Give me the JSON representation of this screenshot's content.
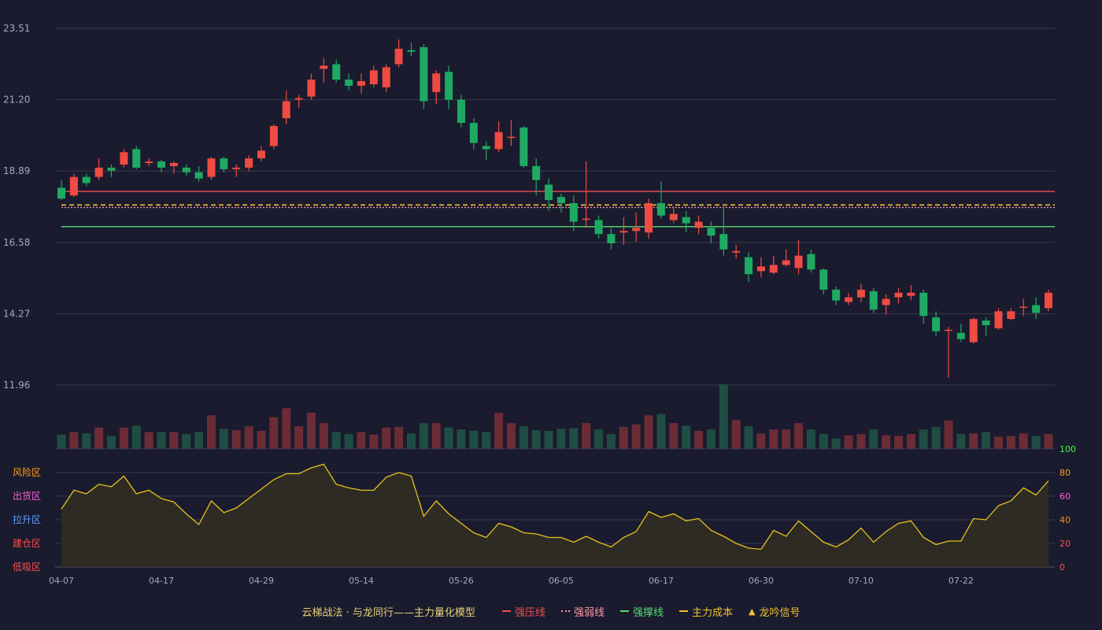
{
  "legend": {
    "title": "云梯战法 · 与龙同行——主力量化模型",
    "items": [
      {
        "label": "强压线",
        "color": "#f05050",
        "style": "solid"
      },
      {
        "label": "强弱线",
        "color": "#ff9aa8",
        "style": "dotted"
      },
      {
        "label": "强撑线",
        "color": "#56e070",
        "style": "solid"
      },
      {
        "label": "主力成本",
        "color": "#f0c030",
        "style": "dashed"
      },
      {
        "label": "龙吟信号",
        "color": "#f0c030",
        "style": "triangle"
      }
    ]
  },
  "colors": {
    "background": "#1a1b2e",
    "up": "#ef4b43",
    "down": "#1faa63",
    "vol_up": "#6b2c35",
    "vol_down": "#1f4d43",
    "grid": "#3a3b4e",
    "axis_text": "#a8a8b8",
    "osc_line": "#e6c21c",
    "osc_fill": "#2e2b24"
  },
  "chart_data": [
    {
      "type": "candlestick",
      "title": "",
      "y_ticks": [
        "23.51",
        "21.20",
        "18.89",
        "16.58",
        "14.27",
        "11.96"
      ],
      "ylim": [
        11.96,
        23.51
      ],
      "x_ticks": [
        "04-07",
        "04-17",
        "04-29",
        "05-14",
        "05-26",
        "06-05",
        "06-17",
        "06-30",
        "07-10",
        "07-22"
      ],
      "x_tick_index": [
        0,
        8,
        16,
        24,
        32,
        40,
        48,
        56,
        64,
        72
      ],
      "h_lines": [
        {
          "name": "强压线",
          "value": 18.23,
          "color": "#f05050",
          "style": "solid"
        },
        {
          "name": "主力成本",
          "value": 17.79,
          "color": "#f0c030",
          "style": "dashed"
        },
        {
          "name": "强弱线",
          "value": 17.71,
          "color": "#ff9aa8",
          "style": "dotted"
        },
        {
          "name": "强撑线",
          "value": 17.09,
          "color": "#56e070",
          "style": "solid"
        }
      ],
      "candles": [
        [
          18.35,
          18.0,
          18.6,
          17.95
        ],
        [
          18.1,
          18.7,
          18.8,
          18.05
        ],
        [
          18.7,
          18.5,
          18.8,
          18.4
        ],
        [
          18.7,
          19.0,
          19.3,
          18.6
        ],
        [
          19.0,
          18.9,
          19.1,
          18.7
        ],
        [
          19.1,
          19.5,
          19.6,
          19.0
        ],
        [
          19.6,
          19.0,
          19.7,
          18.95
        ],
        [
          19.15,
          19.2,
          19.3,
          19.05
        ],
        [
          19.2,
          19.0,
          19.25,
          18.85
        ],
        [
          19.05,
          19.15,
          19.2,
          18.8
        ],
        [
          19.0,
          18.85,
          19.1,
          18.75
        ],
        [
          18.85,
          18.65,
          19.05,
          18.55
        ],
        [
          18.7,
          19.3,
          19.35,
          18.6
        ],
        [
          19.3,
          18.95,
          19.35,
          18.85
        ],
        [
          18.95,
          19.0,
          19.1,
          18.7
        ],
        [
          19.0,
          19.3,
          19.4,
          18.9
        ],
        [
          19.3,
          19.55,
          19.7,
          19.2
        ],
        [
          19.7,
          20.35,
          20.4,
          19.6
        ],
        [
          20.6,
          21.15,
          21.5,
          20.4
        ],
        [
          21.2,
          21.25,
          21.35,
          20.95
        ],
        [
          21.3,
          21.85,
          22.05,
          21.2
        ],
        [
          22.2,
          22.3,
          22.55,
          21.75
        ],
        [
          22.35,
          21.85,
          22.5,
          21.75
        ],
        [
          21.85,
          21.65,
          22.05,
          21.5
        ],
        [
          21.65,
          21.8,
          22.05,
          21.4
        ],
        [
          21.7,
          22.15,
          22.3,
          21.6
        ],
        [
          21.6,
          22.25,
          22.35,
          21.45
        ],
        [
          22.35,
          22.85,
          23.15,
          22.25
        ],
        [
          22.8,
          22.75,
          23.05,
          22.6
        ],
        [
          22.9,
          21.15,
          23.0,
          20.9
        ],
        [
          21.45,
          22.05,
          22.15,
          21.05
        ],
        [
          22.1,
          21.2,
          22.3,
          20.9
        ],
        [
          21.2,
          20.45,
          21.35,
          20.3
        ],
        [
          20.45,
          19.8,
          20.6,
          19.6
        ],
        [
          19.7,
          19.6,
          19.85,
          19.25
        ],
        [
          19.6,
          20.15,
          20.5,
          19.5
        ],
        [
          20.0,
          20.0,
          20.55,
          19.7
        ],
        [
          20.3,
          19.05,
          20.35,
          19.0
        ],
        [
          19.05,
          18.6,
          19.3,
          18.1
        ],
        [
          18.45,
          17.95,
          18.65,
          17.6
        ],
        [
          18.05,
          17.85,
          18.15,
          17.55
        ],
        [
          17.85,
          17.25,
          18.1,
          16.95
        ],
        [
          17.35,
          17.35,
          19.2,
          17.05
        ],
        [
          17.3,
          16.85,
          17.45,
          16.7
        ],
        [
          16.85,
          16.55,
          17.05,
          16.35
        ],
        [
          16.9,
          16.95,
          17.4,
          16.5
        ],
        [
          16.95,
          17.05,
          17.55,
          16.6
        ],
        [
          16.9,
          17.85,
          18.0,
          16.7
        ],
        [
          17.85,
          17.45,
          18.55,
          17.35
        ],
        [
          17.3,
          17.5,
          17.75,
          17.2
        ],
        [
          17.4,
          17.2,
          17.6,
          16.9
        ],
        [
          17.05,
          17.25,
          17.45,
          16.85
        ],
        [
          17.05,
          16.8,
          17.25,
          16.55
        ],
        [
          16.85,
          16.35,
          17.75,
          16.15
        ],
        [
          16.25,
          16.3,
          16.5,
          16.05
        ],
        [
          16.1,
          15.55,
          16.25,
          15.3
        ],
        [
          15.65,
          15.8,
          16.1,
          15.45
        ],
        [
          15.6,
          15.85,
          16.15,
          15.55
        ],
        [
          15.85,
          16.0,
          16.35,
          15.8
        ],
        [
          15.75,
          16.15,
          16.65,
          15.55
        ],
        [
          16.2,
          15.7,
          16.35,
          15.6
        ],
        [
          15.7,
          15.05,
          15.75,
          14.9
        ],
        [
          15.05,
          14.7,
          15.15,
          14.55
        ],
        [
          14.65,
          14.8,
          14.95,
          14.55
        ],
        [
          14.8,
          15.05,
          15.25,
          14.65
        ],
        [
          15.0,
          14.4,
          15.1,
          14.3
        ],
        [
          14.55,
          14.75,
          14.9,
          14.25
        ],
        [
          14.8,
          14.95,
          15.1,
          14.6
        ],
        [
          14.85,
          14.95,
          15.2,
          14.7
        ],
        [
          14.95,
          14.2,
          15.05,
          13.95
        ],
        [
          14.15,
          13.7,
          14.35,
          13.55
        ],
        [
          13.75,
          13.75,
          13.85,
          12.2
        ],
        [
          13.65,
          13.45,
          13.95,
          13.35
        ],
        [
          13.35,
          14.1,
          14.15,
          13.3
        ],
        [
          14.05,
          13.9,
          14.15,
          13.55
        ],
        [
          13.8,
          14.35,
          14.45,
          13.75
        ],
        [
          14.1,
          14.35,
          14.45,
          14.05
        ],
        [
          14.5,
          14.5,
          14.75,
          14.2
        ],
        [
          14.55,
          14.3,
          14.8,
          14.1
        ],
        [
          14.45,
          14.95,
          15.05,
          14.35
        ]
      ],
      "volume": [
        0.22,
        0.26,
        0.24,
        0.33,
        0.2,
        0.33,
        0.36,
        0.26,
        0.26,
        0.26,
        0.23,
        0.26,
        0.52,
        0.31,
        0.29,
        0.35,
        0.28,
        0.49,
        0.63,
        0.35,
        0.56,
        0.4,
        0.26,
        0.23,
        0.26,
        0.22,
        0.33,
        0.34,
        0.24,
        0.4,
        0.4,
        0.33,
        0.3,
        0.28,
        0.26,
        0.56,
        0.4,
        0.35,
        0.29,
        0.28,
        0.31,
        0.32,
        0.4,
        0.3,
        0.23,
        0.34,
        0.38,
        0.52,
        0.54,
        0.4,
        0.36,
        0.28,
        0.3,
        1.0,
        0.45,
        0.35,
        0.24,
        0.3,
        0.3,
        0.4,
        0.3,
        0.23,
        0.16,
        0.21,
        0.23,
        0.3,
        0.21,
        0.2,
        0.23,
        0.3,
        0.34,
        0.44,
        0.23,
        0.24,
        0.26,
        0.19,
        0.2,
        0.24,
        0.2,
        0.23
      ],
      "volume_note": "relative heights (max=1)"
    },
    {
      "type": "line",
      "title": "",
      "ylim": [
        0,
        100
      ],
      "y_ticks": [
        "0",
        "20",
        "40",
        "60",
        "80",
        "100"
      ],
      "tick_colors": [
        "#ff4d4d",
        "#ff4d4d",
        "#ff8c1a",
        "#ff5fd7",
        "#ff9f1c",
        "#3dff3d"
      ],
      "zone_labels": [
        {
          "label": "风险区",
          "color": "#ff9f1c"
        },
        {
          "label": "出货区",
          "color": "#ff5fd7"
        },
        {
          "label": "拉升区",
          "color": "#5aa0ff"
        },
        {
          "label": "建仓区",
          "color": "#ff4d4d"
        },
        {
          "label": "低吸区",
          "color": "#ff4d4d"
        }
      ],
      "series": [
        {
          "values": [
            49,
            65,
            62,
            70,
            68,
            77,
            62,
            65,
            58,
            55,
            45,
            36,
            56,
            46,
            50,
            58,
            66,
            74,
            79,
            79,
            84,
            87,
            70,
            67,
            65,
            65,
            76,
            80,
            77,
            43,
            56,
            45,
            37,
            29,
            25,
            37,
            34,
            29,
            28,
            25,
            25,
            21,
            26,
            21,
            17,
            25,
            30,
            47,
            42,
            45,
            39,
            41,
            31,
            26,
            20,
            16,
            15,
            31,
            26,
            39,
            30,
            21,
            17,
            23,
            33,
            21,
            30,
            37,
            39,
            25,
            19,
            22,
            22,
            41,
            40,
            52,
            56,
            67,
            61,
            73
          ]
        }
      ]
    }
  ]
}
